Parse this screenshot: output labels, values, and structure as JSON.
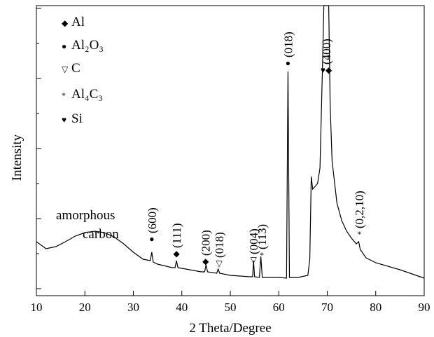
{
  "chart_data": {
    "type": "line",
    "xlabel": "2 Theta/Degree",
    "ylabel": "Intensity",
    "x": [
      10,
      12,
      14,
      16,
      18,
      20,
      22,
      24,
      26,
      28,
      30,
      32,
      33.5,
      33.8,
      34.1,
      35,
      38,
      38.6,
      38.9,
      39.2,
      40,
      44,
      44.7,
      45,
      45.3,
      47.2,
      47.5,
      47.8,
      50,
      54,
      54.6,
      54.8,
      55,
      56,
      56.3,
      56.6,
      60,
      61.6,
      61.9,
      62.2,
      64,
      66,
      66.4,
      66.7,
      67,
      68,
      68.5,
      69,
      69.3,
      70.3,
      70.6,
      71,
      72,
      73,
      74,
      75,
      76,
      76.5,
      76.8,
      78,
      80,
      85,
      90
    ],
    "series": [
      {
        "color": "#000000",
        "values": [
          67,
          57,
          60,
          67,
          75,
          80,
          82,
          80,
          74,
          64,
          52,
          42,
          40,
          52,
          38,
          35,
          30,
          30,
          40,
          30,
          29,
          24,
          24,
          34,
          24,
          22,
          28,
          22,
          19,
          17,
          17,
          40,
          17,
          16,
          46,
          16,
          16,
          15,
          310,
          16,
          16,
          19,
          42,
          160,
          142,
          150,
          172,
          312,
          404,
          404,
          262,
          182,
          122,
          97,
          82,
          72,
          64,
          67,
          56,
          44,
          37,
          27,
          15
        ]
      }
    ],
    "xlim": [
      10,
      90
    ],
    "ylim": [
      -10,
      404
    ],
    "xticks": [
      10,
      20,
      30,
      40,
      50,
      60,
      70,
      80,
      90
    ],
    "yticks": [
      0,
      50,
      100,
      150,
      200,
      250,
      300,
      350,
      400
    ],
    "legend_items": [
      {
        "symbol": "◆",
        "label": "Al"
      },
      {
        "symbol": "●",
        "label": "Al₂O₃"
      },
      {
        "symbol": "▽",
        "label": "C"
      },
      {
        "symbol": "*",
        "label": "Al₄C₃"
      },
      {
        "symbol": "♥",
        "label": "Si"
      }
    ],
    "annotations": [
      {
        "symbol": "●",
        "label": "(600)"
      },
      {
        "symbol": "◆",
        "label": "(111)"
      },
      {
        "symbol": "◆",
        "label": "(200)"
      },
      {
        "symbol": "▽",
        "label": "(018)"
      },
      {
        "symbol": "▽",
        "label": "(004)"
      },
      {
        "symbol": "*",
        "label": "(113)"
      },
      {
        "symbol": "●",
        "label": "(018)"
      },
      {
        "symbol": "♥◆",
        "label": "(400)"
      },
      {
        "symbol": "*",
        "label": "(0,2,10)"
      }
    ],
    "amorphous_note": [
      "amorphous",
      "carbon"
    ]
  }
}
